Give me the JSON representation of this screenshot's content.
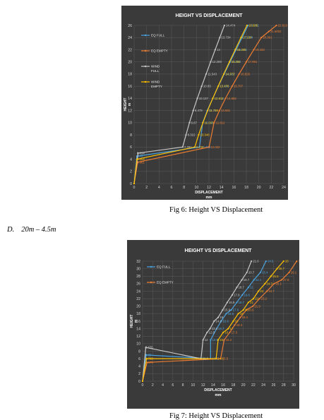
{
  "figure6": {
    "caption": "Fig 6: Height VS Displacement",
    "chart_data": {
      "type": "line",
      "title": "HEIGHT VS DISPLACEMENT",
      "xlabel": "DISPLACEMENT",
      "xunit": "mm",
      "ylabel": "HEIGHT",
      "yunit": "m",
      "xlim": [
        0,
        24
      ],
      "ylim": [
        0,
        26
      ],
      "xticks": [
        0,
        2,
        4,
        6,
        8,
        10,
        12,
        14,
        16,
        18,
        20,
        22,
        24
      ],
      "yticks": [
        0,
        2,
        4,
        6,
        8,
        10,
        12,
        14,
        16,
        18,
        20,
        22,
        24,
        26
      ],
      "grid": true,
      "legend_position": "left",
      "series": [
        {
          "name": "EQ FULL",
          "color": "#4aa3df",
          "points": [
            [
              0,
              0
            ],
            [
              0.45,
              4.5
            ],
            [
              10.489,
              6
            ],
            [
              10.996,
              10
            ],
            [
              11.73,
              12
            ],
            [
              12.614,
              14
            ],
            [
              13.506,
              16
            ],
            [
              14.437,
              18
            ],
            [
              15.384,
              20
            ],
            [
              16.345,
              22
            ],
            [
              17.308,
              24
            ],
            [
              18.262,
              26
            ]
          ],
          "labels": [
            "",
            "0.45",
            "10.489",
            "10.996",
            "11.73",
            "12.614",
            "13.506",
            "14.437",
            "15.384",
            "16.345",
            "17.308",
            "18.262"
          ]
        },
        {
          "name": "EQ EMPTY",
          "color": "#ed7d31",
          "points": [
            [
              0,
              0
            ],
            [
              0.561,
              3.5
            ],
            [
              12.022,
              6
            ],
            [
              12.812,
              10
            ],
            [
              13.681,
              12
            ],
            [
              14.652,
              14
            ],
            [
              15.707,
              16
            ],
            [
              16.826,
              18
            ],
            [
              17.991,
              20
            ],
            [
              19.183,
              22
            ],
            [
              20.391,
              24
            ],
            [
              21.6002,
              25
            ],
            [
              22.819,
              26
            ]
          ],
          "labels": [
            "",
            "0.561",
            "12.022",
            "12.812",
            "13.681",
            "14.652",
            "15.707",
            "16.826",
            "17.991",
            "19.183",
            "20.391",
            "21.6002",
            "22.819"
          ]
        },
        {
          "name": "WIND FULL",
          "color": "#c8c8c8",
          "points": [
            [
              0,
              0
            ],
            [
              0.634,
              5
            ],
            [
              7.781,
              6
            ],
            [
              8.322,
              8
            ],
            [
              8.87,
              10
            ],
            [
              9.479,
              12
            ],
            [
              10.137,
              14
            ],
            [
              10.83,
              16
            ],
            [
              11.543,
              18
            ],
            [
              12.269,
              20
            ],
            [
              13,
              22
            ],
            [
              13.734,
              24
            ],
            [
              14.474,
              26
            ]
          ],
          "labels": [
            "",
            "0.634",
            "7.781",
            "8.322",
            "8.87",
            "9.479",
            "10.137",
            "10.83",
            "11.543",
            "12.269",
            "13",
            "13.734",
            "14.474"
          ]
        },
        {
          "name": "WIND EMPTY",
          "color": "#ffc000",
          "points": [
            [
              0,
              0
            ],
            [
              0.454,
              4
            ],
            [
              9.731,
              6
            ],
            [
              10.346,
              8
            ],
            [
              11.027,
              10
            ],
            [
              11.788,
              12
            ],
            [
              12.611,
              14
            ],
            [
              13.478,
              16
            ],
            [
              14.373,
              18
            ],
            [
              15.284,
              20
            ],
            [
              16.205,
              22
            ],
            [
              17.134,
              24
            ],
            [
              18.086,
              26
            ]
          ],
          "labels": [
            "",
            "0.454",
            "9.731",
            "10.346",
            "11.027",
            "11.788",
            "12.611",
            "13.478",
            "14.373",
            "15.284",
            "16.205",
            "17.134",
            "18.086"
          ]
        }
      ]
    }
  },
  "section": {
    "number": "D.",
    "text": "20m – 4.5m"
  },
  "figure7": {
    "caption": "Fig 7: Height VS Displacement",
    "chart_data": {
      "type": "line",
      "title": "HEIGHT VS DISPLACEMENT",
      "xlabel": "DISPLACEMENT",
      "xunit": "mm",
      "ylabel": "HEIGHT",
      "yunit": "m",
      "xlim": [
        0,
        30
      ],
      "ylim": [
        0,
        32
      ],
      "xticks": [
        0,
        2,
        4,
        6,
        8,
        10,
        12,
        14,
        16,
        18,
        20,
        22,
        24,
        26,
        28,
        30
      ],
      "yticks": [
        0,
        2,
        4,
        6,
        8,
        10,
        12,
        14,
        16,
        18,
        20,
        22,
        24,
        26,
        28,
        30,
        32
      ],
      "grid": true,
      "legend_position": "left",
      "series": [
        {
          "name": "EQ FULL",
          "color": "#4aa3df",
          "points": [
            [
              0,
              0
            ],
            [
              0.69,
              7
            ],
            [
              13.5,
              6
            ],
            [
              13.5,
              11
            ],
            [
              14.7,
              14
            ],
            [
              15.6,
              16
            ],
            [
              16.6,
              18
            ],
            [
              17.6,
              19
            ],
            [
              18.7,
              21
            ],
            [
              19.8,
              23
            ],
            [
              21,
              25
            ],
            [
              22.1,
              27
            ],
            [
              23.4,
              29
            ],
            [
              24.5,
              32
            ]
          ],
          "labels": [
            "",
            "0.69",
            "13.5",
            "13.5",
            "14.7",
            "15.6",
            "16.6",
            "17.6",
            "18.7",
            "19.8",
            "21",
            "22.1",
            "23.4",
            "24.5"
          ]
        },
        {
          "name": "EQ EMPTY",
          "color": "#ed7d31",
          "points": [
            [
              0,
              0
            ],
            [
              0.878,
              5
            ],
            [
              15.5,
              6
            ],
            [
              16.2,
              11
            ],
            [
              17.3,
              13
            ],
            [
              18.3,
              15
            ],
            [
              19.4,
              17
            ],
            [
              20.6,
              19
            ],
            [
              21.9,
              20
            ],
            [
              23.2,
              22
            ],
            [
              24.7,
              24
            ],
            [
              26.1,
              26
            ],
            [
              27.6,
              27
            ],
            [
              29.1,
              29
            ],
            [
              30.6,
              32
            ]
          ],
          "labels": [
            "",
            "0.878",
            "15.5",
            "16.2",
            "17.3",
            "18.3",
            "19.4",
            "20.6",
            "21.9",
            "23.2",
            "24.7",
            "26.1",
            "27.6",
            "29.1",
            "30.6"
          ]
        },
        {
          "name": "",
          "color": "#c8c8c8",
          "points": [
            [
              0,
              0
            ],
            [
              0.635,
              9
            ],
            [
              11.6,
              6
            ],
            [
              12,
              11
            ],
            [
              12.8,
              13
            ],
            [
              13.4,
              14
            ],
            [
              14.2,
              16
            ],
            [
              15,
              17
            ],
            [
              15.9,
              19
            ],
            [
              16.8,
              21
            ],
            [
              17.8,
              23
            ],
            [
              18.7,
              25
            ],
            [
              19.7,
              27
            ],
            [
              20.7,
              29
            ],
            [
              21.6,
              32
            ]
          ],
          "labels": [
            "",
            "0.635",
            "11.6",
            "12",
            "12.8",
            "13.4",
            "14.2",
            "15",
            "15.9",
            "16.8",
            "17.8",
            "18.7",
            "19.7",
            "20.7",
            "21.6"
          ]
        },
        {
          "name": "",
          "color": "#ffc000",
          "points": [
            [
              0,
              0
            ],
            [
              0.788,
              6
            ],
            [
              14.6,
              6
            ],
            [
              15,
              11
            ],
            [
              16,
              13
            ],
            [
              17,
              14
            ],
            [
              18,
              16
            ],
            [
              19,
              18
            ],
            [
              20,
              19
            ],
            [
              21,
              21
            ],
            [
              22,
              22
            ],
            [
              23,
              24
            ],
            [
              24.3,
              26
            ],
            [
              25.5,
              28
            ],
            [
              26.7,
              30
            ],
            [
              28,
              32
            ]
          ],
          "labels": [
            "",
            "0.788",
            "14.6",
            "15",
            "16",
            "17",
            "18",
            "19",
            "20",
            "21",
            "22",
            "23",
            "24.3",
            "25.5",
            "26.7",
            "28"
          ]
        }
      ]
    }
  }
}
